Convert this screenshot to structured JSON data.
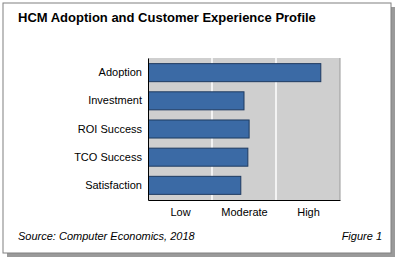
{
  "chart_data": {
    "type": "bar",
    "orientation": "horizontal",
    "title": "HCM Adoption and Customer Experience Profile",
    "categories": [
      "Adoption",
      "Investment",
      "ROI Success",
      "TCO Success",
      "Satisfaction"
    ],
    "values": [
      2.7,
      1.5,
      1.58,
      1.56,
      1.45
    ],
    "color": "#3b6aa5",
    "xlim": [
      0,
      3
    ],
    "xticks": [
      {
        "value": 0.5,
        "label": "Low"
      },
      {
        "value": 1.5,
        "label": "Moderate"
      },
      {
        "value": 2.5,
        "label": "High"
      }
    ],
    "grid": true,
    "annotations": [
      "Source: Computer Economics, 2018",
      "Figure 1"
    ]
  }
}
